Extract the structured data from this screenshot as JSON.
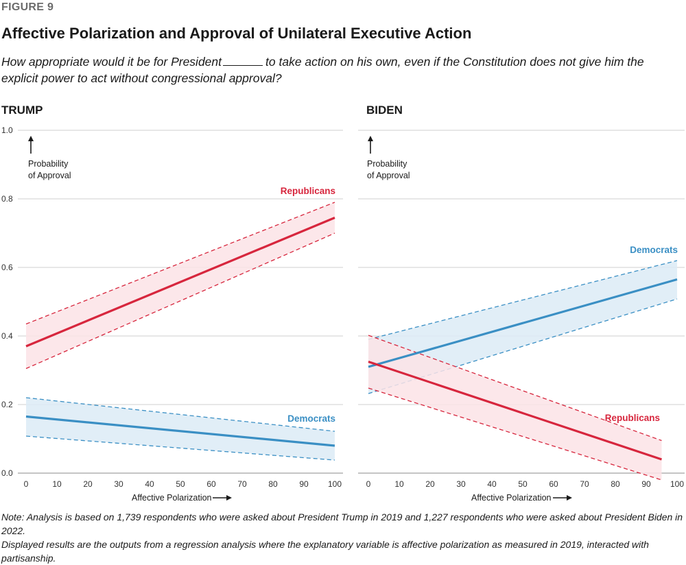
{
  "figure_label": "FIGURE 9",
  "title": "Affective Polarization and Approval of Unilateral Executive Action",
  "subtitle_part1": "How appropriate would it be for President",
  "subtitle_part2": "to take action on his own, even if the Constitution does not give him the explicit power to act without congressional approval?",
  "note_line1": "Note: Analysis is based on 1,739 respondents who were asked about President Trump in 2019 and 1,227 respondents who were asked about President Biden in 2022.",
  "note_line2": "Displayed results are the outputs from a regression analysis where the explanatory variable is affective polarization as measured in 2019, interacted with partisanship.",
  "colors": {
    "republicans": "#d7263d",
    "democrats": "#3a8fc4",
    "rep_fill": "#fbe3e6",
    "dem_fill": "#dcebf6",
    "grid": "#cfcfcf"
  },
  "chart_data": [
    {
      "type": "line",
      "panel_title": "TRUMP",
      "xlabel": "Affective Polarization",
      "ylabel": "Probability of Approval",
      "ylabel_line1": "Probability",
      "ylabel_line2": "of Approval",
      "xlim": [
        0,
        100
      ],
      "ylim": [
        0,
        1.0
      ],
      "xticks": [
        0,
        10,
        20,
        30,
        40,
        50,
        60,
        70,
        80,
        90,
        100
      ],
      "yticks": [
        0.0,
        0.2,
        0.4,
        0.6,
        0.8,
        1.0
      ],
      "ytick_labels": [
        "0.0",
        "0.2",
        "0.4",
        "0.6",
        "0.8",
        "1.0"
      ],
      "series": [
        {
          "name": "Republicans",
          "x": [
            0,
            100
          ],
          "y": [
            0.37,
            0.745
          ],
          "lower": [
            0.305,
            0.7
          ],
          "upper": [
            0.435,
            0.79
          ]
        },
        {
          "name": "Democrats",
          "x": [
            0,
            100
          ],
          "y": [
            0.165,
            0.08
          ],
          "lower": [
            0.108,
            0.038
          ],
          "upper": [
            0.22,
            0.122
          ]
        }
      ]
    },
    {
      "type": "line",
      "panel_title": "BIDEN",
      "xlabel": "Affective Polarization",
      "ylabel": "Probability of Approval",
      "ylabel_line1": "Probability",
      "ylabel_line2": "of Approval",
      "xlim": [
        0,
        100
      ],
      "ylim": [
        0,
        1.0
      ],
      "xticks": [
        0,
        10,
        20,
        30,
        40,
        50,
        60,
        70,
        80,
        90,
        100
      ],
      "yticks": [
        0.0,
        0.2,
        0.4,
        0.6,
        0.8,
        1.0
      ],
      "series": [
        {
          "name": "Democrats",
          "x": [
            0,
            100
          ],
          "y": [
            0.31,
            0.565
          ],
          "lower": [
            0.232,
            0.508
          ],
          "upper": [
            0.39,
            0.62
          ]
        },
        {
          "name": "Republicans",
          "x": [
            0,
            95
          ],
          "y": [
            0.325,
            0.04
          ],
          "lower": [
            0.248,
            -0.02
          ],
          "upper": [
            0.402,
            0.095
          ]
        }
      ]
    }
  ]
}
